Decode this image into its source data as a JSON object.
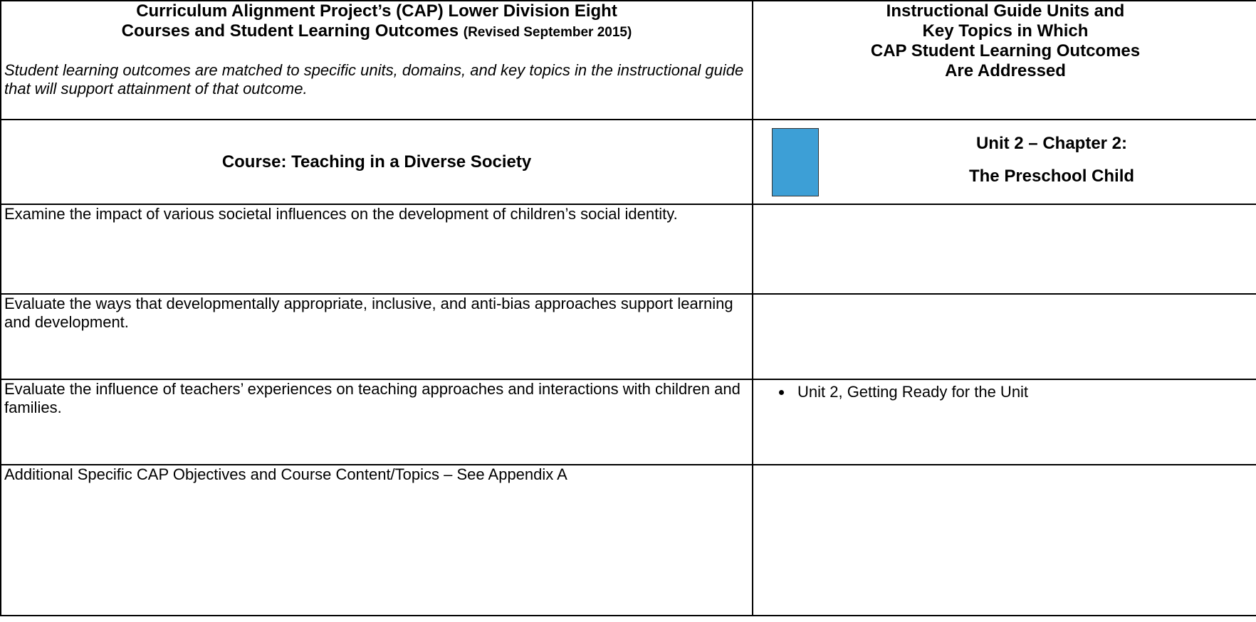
{
  "header": {
    "left": {
      "title_lines": [
        "Curriculum Alignment Project’s (CAP) Lower Division Eight",
        "Courses and Student Learning Outcomes"
      ],
      "title_note": "(Revised September 2015)",
      "intro": "Student learning outcomes are matched to specific units, domains, and key topics in the instructional guide that will support attainment of that outcome."
    },
    "right": {
      "title_lines": [
        "Instructional Guide Units and",
        "Key Topics in Which",
        "CAP Student Learning Outcomes",
        "Are Addressed"
      ]
    }
  },
  "course": {
    "label": "Course:  Teaching in a Diverse Society",
    "unit_lines": [
      "Unit 2 – Chapter 2:",
      "The Preschool Child"
    ]
  },
  "rows": [
    {
      "outcome": "Examine the impact of various societal influences on the development of children’s social identity.",
      "topics": []
    },
    {
      "outcome": "Evaluate the ways that developmentally appropriate, inclusive, and anti-bias approaches support learning and development.",
      "topics": []
    },
    {
      "outcome": "Evaluate the influence of teachers’ experiences on teaching approaches and interactions with children and families.",
      "topics": [
        "Unit 2, Getting Ready for the Unit"
      ]
    },
    {
      "outcome": "Additional Specific CAP Objectives and Course Content/Topics – See Appendix A",
      "topics": []
    }
  ]
}
